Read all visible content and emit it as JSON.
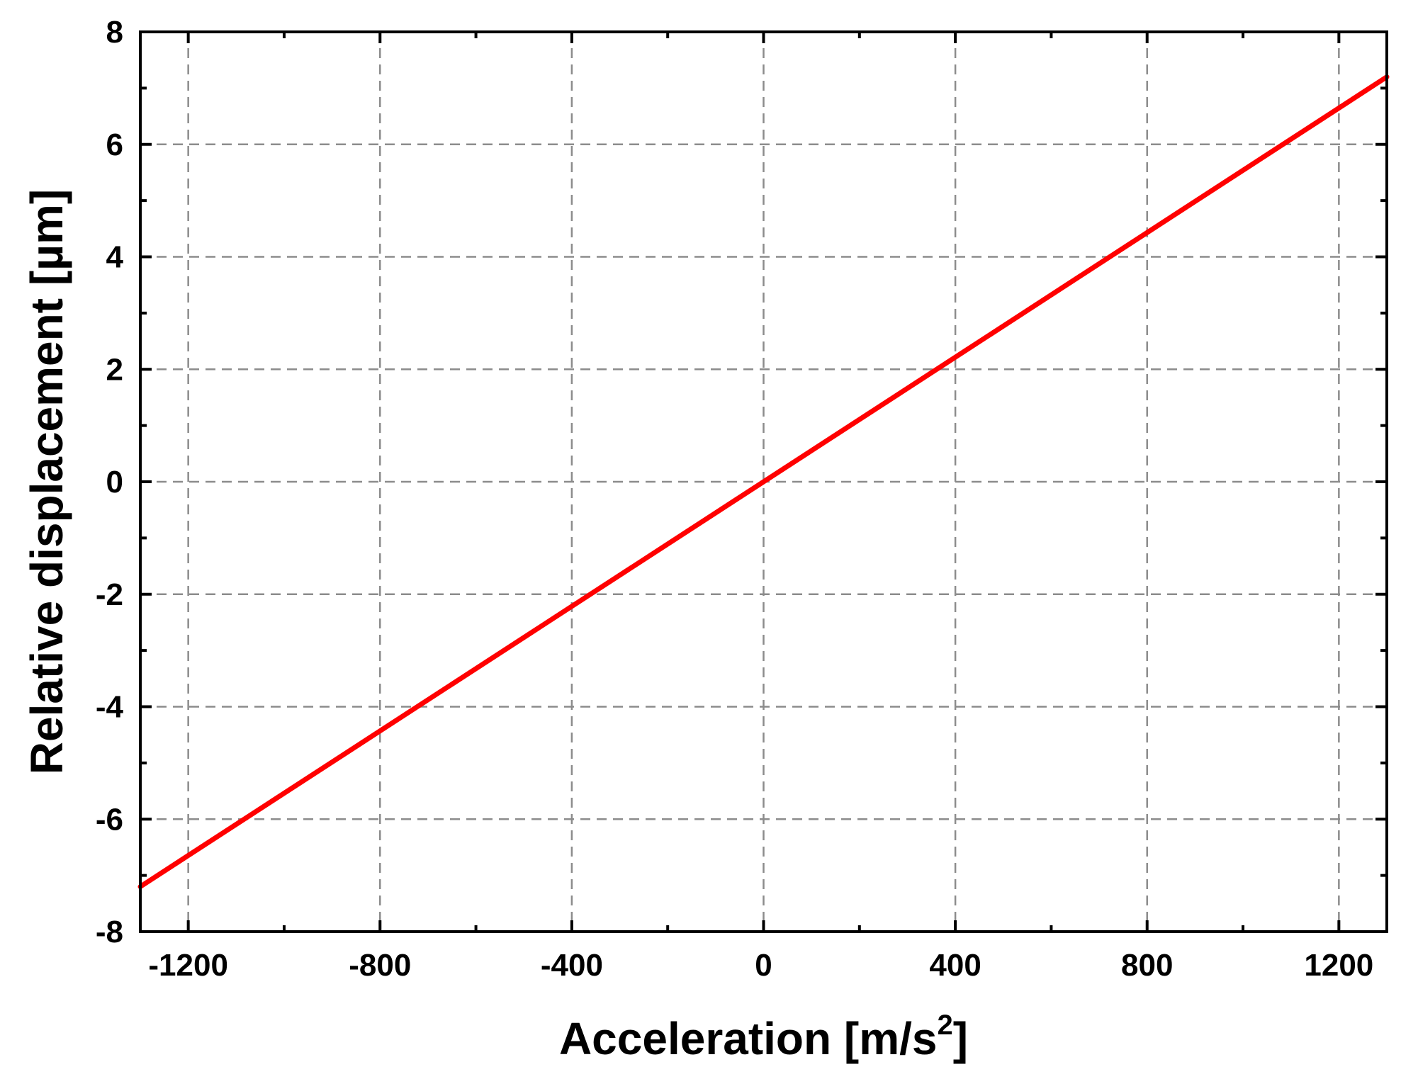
{
  "chart_data": {
    "type": "line",
    "title": "",
    "xlabel": "Acceleration [m/s",
    "xlabel_sup": "2",
    "xlabel_suffix": "]",
    "ylabel": "Relative displacement [µm]",
    "xlim": [
      -1300,
      1300
    ],
    "ylim": [
      -8,
      8
    ],
    "x_ticks": [
      -1200,
      -800,
      -400,
      0,
      400,
      800,
      1200
    ],
    "x_tick_labels": [
      "-1200",
      "-800",
      "-400",
      "0",
      "400",
      "800",
      "1200"
    ],
    "x_minor_step": 200,
    "y_ticks": [
      -8,
      -6,
      -4,
      -2,
      0,
      2,
      4,
      6,
      8
    ],
    "y_tick_labels": [
      "-8",
      "-6",
      "-4",
      "-2",
      "0",
      "2",
      "4",
      "6",
      "8"
    ],
    "y_minor_step": 1,
    "grid": true,
    "legend": "none",
    "series": [
      {
        "color": "#ff0000",
        "x": [
          -1300,
          1300
        ],
        "y": [
          -7.2,
          7.2
        ]
      }
    ]
  }
}
